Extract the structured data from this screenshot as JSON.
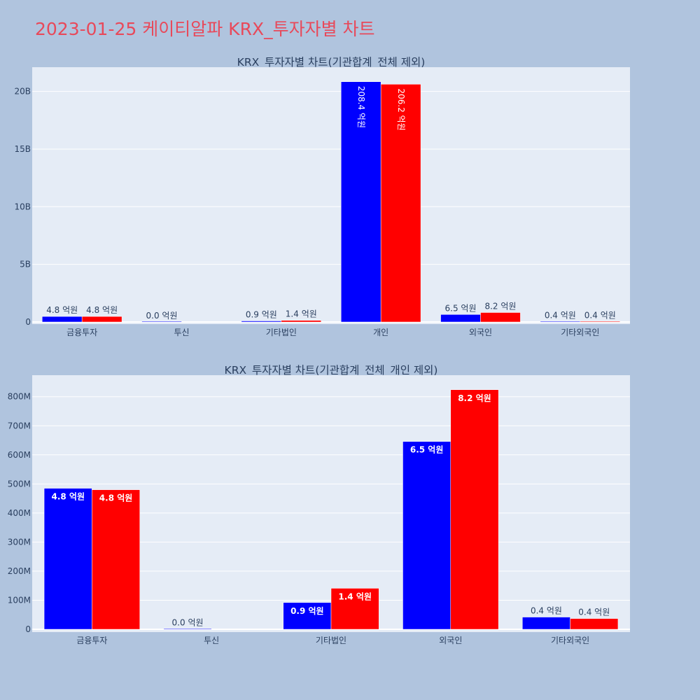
{
  "page": {
    "title": "2023-01-25 케이티알파 KRX_투자자별 차트"
  },
  "colors": {
    "background": "#b0c4de",
    "plot_bg": "#e5ecf6",
    "title": "#e8495a",
    "series_a": "#0000ff",
    "series_b": "#ff0000",
    "text": "#2a3f5f"
  },
  "chart_data": [
    {
      "type": "bar",
      "title": "KRX_투자자별 차트(기관합계_전체 제외)",
      "categories": [
        "금융투자",
        "투신",
        "기타법인",
        "개인",
        "외국인",
        "기타외국인"
      ],
      "series": [
        {
          "color": "#0000ff",
          "values": [
            480000000,
            1000000,
            90000000,
            20840000000,
            650000000,
            40000000
          ],
          "labels": [
            "4.8 억원",
            "0.0 억원",
            "0.9 억원",
            "208.4 억원",
            "6.5 억원",
            "0.4 억원"
          ]
        },
        {
          "color": "#ff0000",
          "values": [
            480000000,
            0,
            140000000,
            20620000000,
            820000000,
            40000000
          ],
          "labels": [
            "4.8 억원",
            "",
            "1.4 억원",
            "206.2 억원",
            "8.2 억원",
            "0.4 억원"
          ]
        }
      ],
      "yticks": [
        "0",
        "5B",
        "10B",
        "15B",
        "20B"
      ],
      "ytick_values": [
        0,
        5000000000,
        10000000000,
        15000000000,
        20000000000
      ],
      "ylim": [
        0,
        22100000000
      ],
      "grid": true
    },
    {
      "type": "bar",
      "title": "KRX_투자자별 차트(기관합계_전체_개인 제외)",
      "categories": [
        "금융투자",
        "투신",
        "기타법인",
        "외국인",
        "기타외국인"
      ],
      "series": [
        {
          "color": "#0000ff",
          "values": [
            485000000,
            1000000,
            92000000,
            646000000,
            42000000
          ],
          "labels": [
            "4.8 억원",
            "0.0 억원",
            "0.9 억원",
            "6.5 억원",
            "0.4 억원"
          ]
        },
        {
          "color": "#ff0000",
          "values": [
            480000000,
            0,
            141000000,
            824000000,
            37000000
          ],
          "labels": [
            "4.8 억원",
            "",
            "1.4 억원",
            "8.2 억원",
            "0.4 억원"
          ]
        }
      ],
      "yticks": [
        "0",
        "100M",
        "200M",
        "300M",
        "400M",
        "500M",
        "600M",
        "700M",
        "800M"
      ],
      "ytick_values": [
        0,
        100000000,
        200000000,
        300000000,
        400000000,
        500000000,
        600000000,
        700000000,
        800000000
      ],
      "ylim": [
        0,
        874000000
      ],
      "grid": true
    }
  ]
}
